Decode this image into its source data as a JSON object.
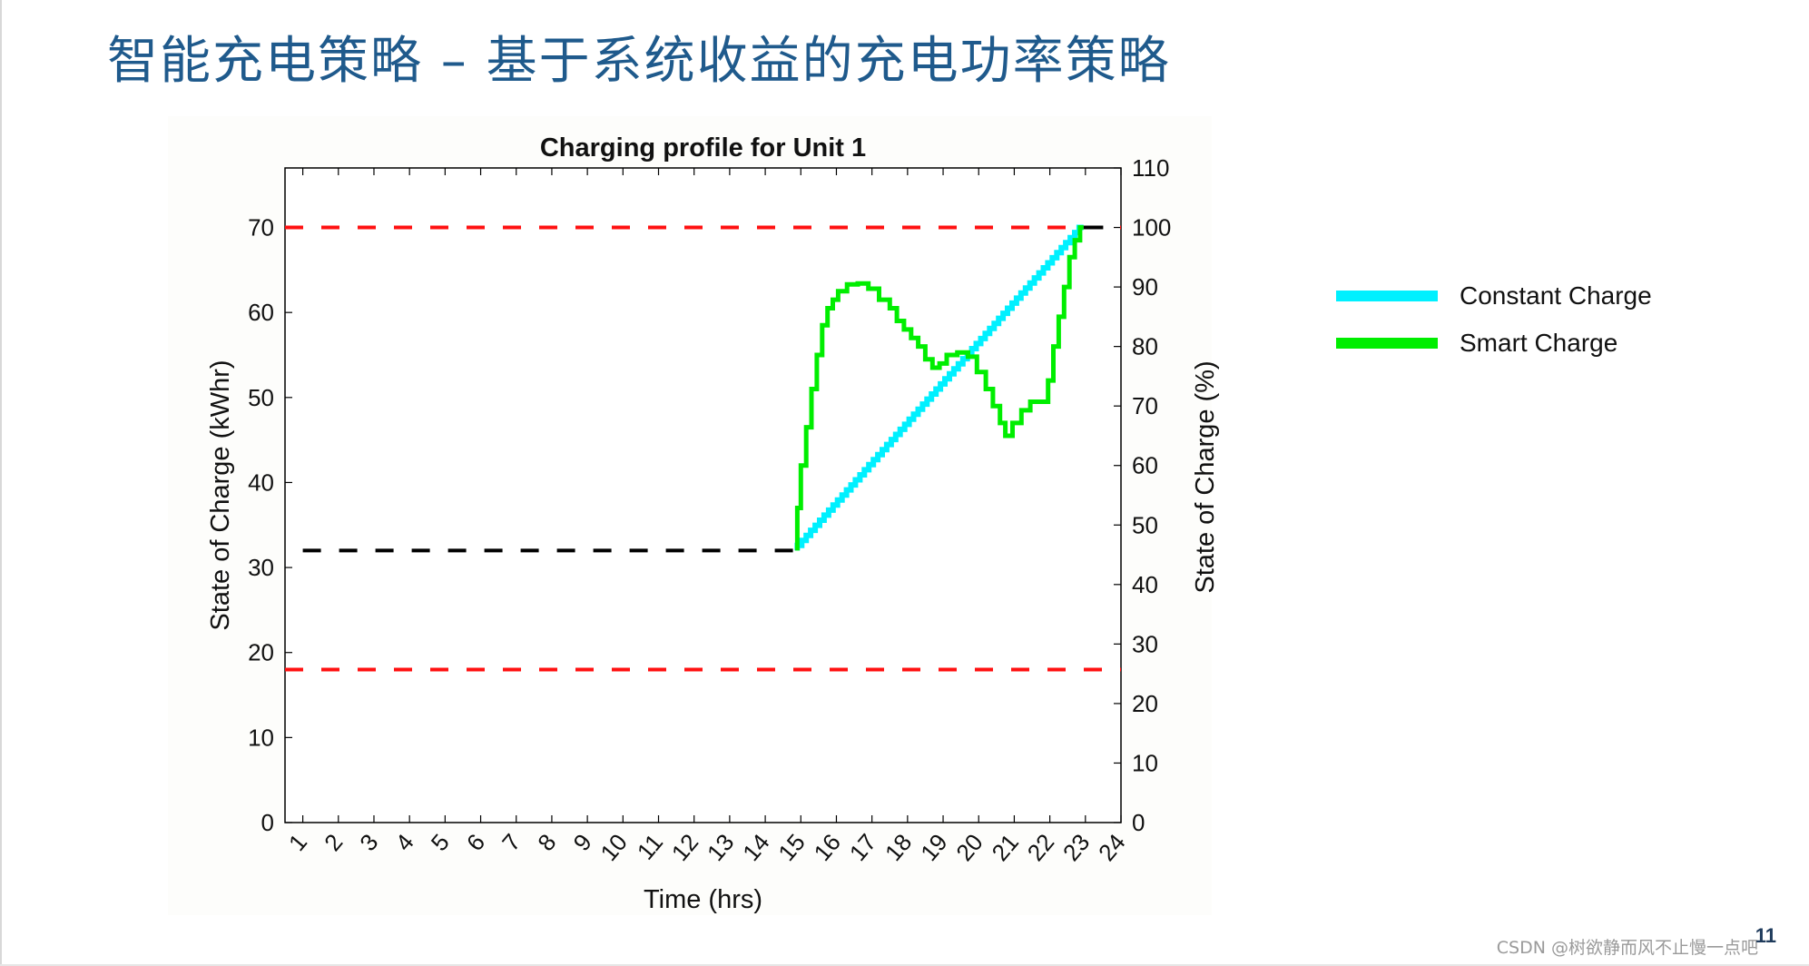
{
  "slide": {
    "title": "智能充电策略 – 基于系统收益的充电功率策略",
    "page_number": "11",
    "watermark": "CSDN @树欲静而风不止慢一点吧"
  },
  "chart_data": {
    "type": "line",
    "title": "Charging profile for Unit 1",
    "xlabel": "Time (hrs)",
    "ylabel": "State of Charge (kWhr)",
    "ylabel_right": "State of Charge (%)",
    "xlim": [
      0.5,
      24
    ],
    "ylim": [
      0,
      77
    ],
    "ylim_right": [
      0,
      110
    ],
    "x_ticks": [
      "1",
      "2",
      "3",
      "4",
      "5",
      "6",
      "7",
      "8",
      "9",
      "10",
      "11",
      "12",
      "13",
      "14",
      "15",
      "16",
      "17",
      "18",
      "19",
      "20",
      "21",
      "22",
      "23",
      "24"
    ],
    "y_ticks": [
      "0",
      "10",
      "20",
      "30",
      "40",
      "50",
      "60",
      "70"
    ],
    "y_ticks_right": [
      "0",
      "10",
      "20",
      "30",
      "40",
      "50",
      "60",
      "70",
      "80",
      "90",
      "100",
      "110"
    ],
    "grid": false,
    "legend_position": "right",
    "series": [
      {
        "name": "Constant Charge",
        "color": "#00f0ff",
        "style": "stepped",
        "x": [
          14.9,
          22.95
        ],
        "y": [
          32,
          70
        ]
      },
      {
        "name": "Smart Charge",
        "color": "#00ee00",
        "style": "stepped",
        "x": [
          14.9,
          15.0,
          15.15,
          15.3,
          15.45,
          15.6,
          15.75,
          15.9,
          16.05,
          16.3,
          16.6,
          16.9,
          17.2,
          17.5,
          17.7,
          17.9,
          18.1,
          18.3,
          18.5,
          18.7,
          18.9,
          19.1,
          19.4,
          19.7,
          19.95,
          20.2,
          20.4,
          20.6,
          20.75,
          20.95,
          21.2,
          21.45,
          21.7,
          21.95,
          22.1,
          22.25,
          22.4,
          22.55,
          22.7,
          22.85,
          22.95
        ],
        "y": [
          32,
          37,
          42,
          46.5,
          51,
          55,
          58.5,
          60.5,
          61.5,
          62.5,
          63.3,
          63.4,
          62.8,
          61.5,
          60.5,
          59,
          58,
          57,
          56,
          54.5,
          53.5,
          54,
          55,
          55.3,
          54.8,
          53,
          51,
          49,
          47,
          45.5,
          47,
          48.5,
          49.5,
          49.5,
          52,
          56,
          59.5,
          63,
          66.5,
          68.5,
          70
        ]
      },
      {
        "name": "",
        "color": "#000000",
        "style": "dashed",
        "x": [
          1,
          14.9
        ],
        "y": [
          32,
          32
        ]
      },
      {
        "name": "",
        "color": "#000000",
        "style": "solid",
        "x": [
          22.95,
          23.5
        ],
        "y": [
          70,
          70
        ]
      }
    ],
    "reference_lines": [
      {
        "y": 70,
        "color": "#ff1111",
        "style": "dashed"
      },
      {
        "y": 18,
        "color": "#ff1111",
        "style": "dashed"
      }
    ]
  }
}
